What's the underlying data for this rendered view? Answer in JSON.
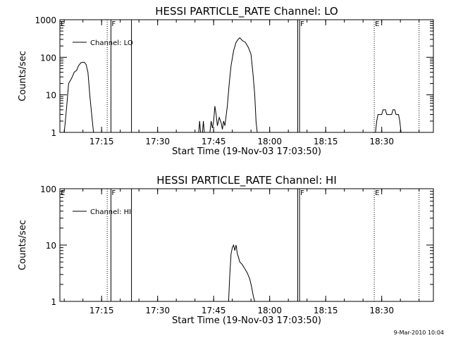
{
  "chart_data": [
    {
      "type": "line",
      "title": "HESSI PARTICLE_RATE Channel: LO",
      "xlabel": "Start Time (19-Nov-03 17:03:50)",
      "ylabel": "Counts/sec",
      "yscale": "log",
      "ylim": [
        1,
        1000
      ],
      "yticks": [
        {
          "v": 1,
          "label": "1"
        },
        {
          "v": 10,
          "label": "10"
        },
        {
          "v": 100,
          "label": "100"
        },
        {
          "v": 1000,
          "label": "1000"
        }
      ],
      "xlim": [
        "17:03:50",
        "18:43:50"
      ],
      "xticks": [
        "17:15",
        "17:30",
        "17:45",
        "18:00",
        "18:15",
        "18:30"
      ],
      "legend": {
        "label": "Channel: LO",
        "placement": "top-left"
      },
      "markers": [
        {
          "time": "17:03:50",
          "label": "E",
          "style": "label"
        },
        {
          "time": "17:16:30",
          "label": "",
          "style": "dotted"
        },
        {
          "time": "17:17:30",
          "label": "F",
          "style": "solid"
        },
        {
          "time": "17:23:00",
          "label": "",
          "style": "solid"
        },
        {
          "time": "18:07:30",
          "label": "",
          "style": "solid"
        },
        {
          "time": "18:08:00",
          "label": "F",
          "style": "solid"
        },
        {
          "time": "18:28:00",
          "label": "E",
          "style": "dotted"
        },
        {
          "time": "18:40:00",
          "label": "",
          "style": "dotted"
        }
      ],
      "series": [
        {
          "segments": [
            [
              [
                "17:05:00",
                1
              ],
              [
                "17:05:40",
                5
              ],
              [
                "17:06:10",
                20
              ],
              [
                "17:07:00",
                28
              ],
              [
                "17:07:40",
                40
              ],
              [
                "17:08:20",
                45
              ],
              [
                "17:08:50",
                60
              ],
              [
                "17:09:30",
                72
              ],
              [
                "17:10:20",
                74
              ],
              [
                "17:10:50",
                65
              ],
              [
                "17:11:20",
                40
              ],
              [
                "17:11:50",
                10
              ],
              [
                "17:12:20",
                3
              ],
              [
                "17:12:50",
                1
              ]
            ],
            [
              [
                "17:41:00",
                1
              ],
              [
                "17:41:15",
                2
              ],
              [
                "17:41:30",
                1
              ],
              [
                "17:42:00",
                1
              ],
              [
                "17:42:15",
                2
              ],
              [
                "17:42:30",
                1
              ]
            ],
            [
              [
                "17:44:00",
                1
              ],
              [
                "17:44:20",
                2
              ],
              [
                "17:44:40",
                1.3
              ],
              [
                "17:45:00",
                2
              ],
              [
                "17:45:20",
                5
              ],
              [
                "17:45:40",
                3
              ],
              [
                "17:46:00",
                1.5
              ],
              [
                "17:46:30",
                2.5
              ],
              [
                "17:47:00",
                1.8
              ],
              [
                "17:47:20",
                1.2
              ],
              [
                "17:47:40",
                2
              ],
              [
                "17:48:00",
                1.5
              ],
              [
                "17:48:40",
                5
              ],
              [
                "17:49:10",
                20
              ],
              [
                "17:49:40",
                60
              ],
              [
                "17:50:20",
                150
              ],
              [
                "17:51:00",
                250
              ],
              [
                "17:51:40",
                310
              ],
              [
                "17:52:00",
                330
              ],
              [
                "17:52:40",
                280
              ],
              [
                "17:53:30",
                250
              ],
              [
                "17:54:20",
                180
              ],
              [
                "17:55:00",
                120
              ],
              [
                "17:55:30",
                40
              ],
              [
                "17:56:00",
                10
              ],
              [
                "17:56:20",
                2
              ],
              [
                "17:56:40",
                1
              ]
            ],
            [
              [
                "18:28:20",
                1
              ],
              [
                "18:28:40",
                2
              ],
              [
                "18:29:00",
                3
              ],
              [
                "18:30:00",
                3
              ],
              [
                "18:30:20",
                4
              ],
              [
                "18:31:00",
                4
              ],
              [
                "18:31:20",
                3
              ],
              [
                "18:32:40",
                3
              ],
              [
                "18:33:00",
                4
              ],
              [
                "18:33:30",
                4
              ],
              [
                "18:33:50",
                3
              ],
              [
                "18:34:30",
                3
              ],
              [
                "18:34:50",
                2
              ],
              [
                "18:35:10",
                1
              ]
            ]
          ]
        }
      ]
    },
    {
      "type": "line",
      "title": "HESSI PARTICLE_RATE Channel: HI",
      "xlabel": "Start Time (19-Nov-03 17:03:50)",
      "ylabel": "Counts/sec",
      "yscale": "log",
      "ylim": [
        1,
        100
      ],
      "yticks": [
        {
          "v": 1,
          "label": "1"
        },
        {
          "v": 10,
          "label": "10"
        },
        {
          "v": 100,
          "label": "100"
        }
      ],
      "xlim": [
        "17:03:50",
        "18:43:50"
      ],
      "xticks": [
        "17:15",
        "17:30",
        "17:45",
        "18:00",
        "18:15",
        "18:30"
      ],
      "legend": {
        "label": "Channel: HI",
        "placement": "top-left"
      },
      "markers": [
        {
          "time": "17:03:50",
          "label": "E",
          "style": "label"
        },
        {
          "time": "17:16:30",
          "label": "",
          "style": "dotted"
        },
        {
          "time": "17:17:30",
          "label": "F",
          "style": "solid"
        },
        {
          "time": "17:23:00",
          "label": "",
          "style": "solid"
        },
        {
          "time": "18:07:30",
          "label": "",
          "style": "solid"
        },
        {
          "time": "18:08:00",
          "label": "F",
          "style": "solid"
        },
        {
          "time": "18:28:00",
          "label": "E",
          "style": "dotted"
        },
        {
          "time": "18:40:00",
          "label": "",
          "style": "dotted"
        }
      ],
      "series": [
        {
          "segments": [
            [
              [
                "17:49:00",
                1
              ],
              [
                "17:49:20",
                3
              ],
              [
                "17:49:40",
                7
              ],
              [
                "17:50:00",
                9
              ],
              [
                "17:50:20",
                10
              ],
              [
                "17:50:40",
                8
              ],
              [
                "17:51:00",
                10
              ],
              [
                "17:51:20",
                7
              ],
              [
                "17:51:40",
                6
              ],
              [
                "17:52:00",
                5
              ],
              [
                "17:52:40",
                4.5
              ],
              [
                "17:53:20",
                3.8
              ],
              [
                "17:54:00",
                3.2
              ],
              [
                "17:54:40",
                2.5
              ],
              [
                "17:55:10",
                1.8
              ],
              [
                "17:55:40",
                1.2
              ],
              [
                "17:56:00",
                1
              ]
            ]
          ]
        }
      ]
    }
  ],
  "timestamp": "9-Mar-2010 10:04"
}
